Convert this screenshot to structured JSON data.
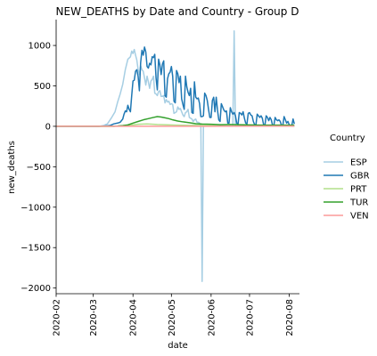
{
  "chart_data": {
    "type": "line",
    "title": "NEW_DEATHS by Date and Country - Group D",
    "xlabel": "date",
    "ylabel": "new_deaths",
    "xlim": [
      "2020-02-01",
      "2020-08-09"
    ],
    "ylim": [
      -2070,
      1320
    ],
    "x_ticks": [
      "2020-02",
      "2020-03",
      "2020-04",
      "2020-05",
      "2020-06",
      "2020-07",
      "2020-08"
    ],
    "y_ticks": [
      -2000,
      -1500,
      -1000,
      -500,
      0,
      500,
      1000
    ],
    "grid": false,
    "legend": {
      "title": "Country",
      "position": "right"
    },
    "series": [
      {
        "name": "ESP",
        "color": "#a6cee3",
        "points": [
          [
            "2020-02-01",
            0
          ],
          [
            "2020-03-01",
            0
          ],
          [
            "2020-03-06",
            1
          ],
          [
            "2020-03-09",
            10
          ],
          [
            "2020-03-12",
            30
          ],
          [
            "2020-03-15",
            100
          ],
          [
            "2020-03-18",
            180
          ],
          [
            "2020-03-20",
            300
          ],
          [
            "2020-03-22",
            400
          ],
          [
            "2020-03-24",
            520
          ],
          [
            "2020-03-26",
            700
          ],
          [
            "2020-03-28",
            830
          ],
          [
            "2020-03-30",
            860
          ],
          [
            "2020-03-31",
            930
          ],
          [
            "2020-04-01",
            900
          ],
          [
            "2020-04-02",
            950
          ],
          [
            "2020-04-03",
            880
          ],
          [
            "2020-04-04",
            820
          ],
          [
            "2020-04-05",
            700
          ],
          [
            "2020-04-06",
            640
          ],
          [
            "2020-04-07",
            750
          ],
          [
            "2020-04-08",
            700
          ],
          [
            "2020-04-09",
            680
          ],
          [
            "2020-04-10",
            600
          ],
          [
            "2020-04-11",
            510
          ],
          [
            "2020-04-12",
            620
          ],
          [
            "2020-04-13",
            550
          ],
          [
            "2020-04-14",
            470
          ],
          [
            "2020-04-15",
            560
          ],
          [
            "2020-04-16",
            580
          ],
          [
            "2020-04-17",
            620
          ],
          [
            "2020-04-18",
            410
          ],
          [
            "2020-04-19",
            400
          ],
          [
            "2020-04-20",
            380
          ],
          [
            "2020-04-21",
            430
          ],
          [
            "2020-04-22",
            440
          ],
          [
            "2020-04-23",
            370
          ],
          [
            "2020-04-24",
            370
          ],
          [
            "2020-04-25",
            380
          ],
          [
            "2020-04-26",
            290
          ],
          [
            "2020-04-27",
            330
          ],
          [
            "2020-04-28",
            300
          ],
          [
            "2020-04-29",
            310
          ],
          [
            "2020-04-30",
            270
          ],
          [
            "2020-05-01",
            280
          ],
          [
            "2020-05-02",
            270
          ],
          [
            "2020-05-03",
            160
          ],
          [
            "2020-05-04",
            170
          ],
          [
            "2020-05-05",
            180
          ],
          [
            "2020-05-06",
            240
          ],
          [
            "2020-05-07",
            210
          ],
          [
            "2020-05-08",
            220
          ],
          [
            "2020-05-09",
            180
          ],
          [
            "2020-05-10",
            140
          ],
          [
            "2020-05-11",
            120
          ],
          [
            "2020-05-12",
            170
          ],
          [
            "2020-05-13",
            180
          ],
          [
            "2020-05-14",
            210
          ],
          [
            "2020-05-15",
            110
          ],
          [
            "2020-05-16",
            100
          ],
          [
            "2020-05-17",
            90
          ],
          [
            "2020-05-18",
            60
          ],
          [
            "2020-05-19",
            80
          ],
          [
            "2020-05-20",
            90
          ],
          [
            "2020-05-21",
            50
          ],
          [
            "2020-05-22",
            50
          ],
          [
            "2020-05-23",
            40
          ],
          [
            "2020-05-24",
            10
          ],
          [
            "2020-05-25",
            -1918
          ],
          [
            "2020-05-26",
            0
          ],
          [
            "2020-05-27",
            2
          ],
          [
            "2020-06-05",
            2
          ],
          [
            "2020-06-10",
            3
          ],
          [
            "2020-06-18",
            1
          ],
          [
            "2020-06-19",
            1179
          ],
          [
            "2020-06-20",
            0
          ],
          [
            "2020-07-01",
            5
          ],
          [
            "2020-07-15",
            3
          ],
          [
            "2020-08-01",
            2
          ],
          [
            "2020-08-05",
            1
          ]
        ]
      },
      {
        "name": "GBR",
        "color": "#1f78b4",
        "points": [
          [
            "2020-02-01",
            0
          ],
          [
            "2020-03-05",
            1
          ],
          [
            "2020-03-10",
            3
          ],
          [
            "2020-03-14",
            10
          ],
          [
            "2020-03-17",
            30
          ],
          [
            "2020-03-20",
            40
          ],
          [
            "2020-03-22",
            50
          ],
          [
            "2020-03-24",
            90
          ],
          [
            "2020-03-25",
            150
          ],
          [
            "2020-03-26",
            190
          ],
          [
            "2020-03-27",
            180
          ],
          [
            "2020-03-28",
            260
          ],
          [
            "2020-03-29",
            210
          ],
          [
            "2020-03-30",
            180
          ],
          [
            "2020-03-31",
            380
          ],
          [
            "2020-04-01",
            560
          ],
          [
            "2020-04-02",
            570
          ],
          [
            "2020-04-03",
            680
          ],
          [
            "2020-04-04",
            700
          ],
          [
            "2020-04-05",
            620
          ],
          [
            "2020-04-06",
            440
          ],
          [
            "2020-04-07",
            790
          ],
          [
            "2020-04-08",
            940
          ],
          [
            "2020-04-09",
            880
          ],
          [
            "2020-04-10",
            980
          ],
          [
            "2020-04-11",
            920
          ],
          [
            "2020-04-12",
            740
          ],
          [
            "2020-04-13",
            720
          ],
          [
            "2020-04-14",
            780
          ],
          [
            "2020-04-15",
            760
          ],
          [
            "2020-04-16",
            860
          ],
          [
            "2020-04-17",
            850
          ],
          [
            "2020-04-18",
            890
          ],
          [
            "2020-04-19",
            600
          ],
          [
            "2020-04-20",
            450
          ],
          [
            "2020-04-21",
            830
          ],
          [
            "2020-04-22",
            760
          ],
          [
            "2020-04-23",
            640
          ],
          [
            "2020-04-24",
            770
          ],
          [
            "2020-04-25",
            810
          ],
          [
            "2020-04-26",
            380
          ],
          [
            "2020-04-27",
            360
          ],
          [
            "2020-04-28",
            590
          ],
          [
            "2020-04-29",
            650
          ],
          [
            "2020-04-30",
            670
          ],
          [
            "2020-05-01",
            740
          ],
          [
            "2020-05-02",
            620
          ],
          [
            "2020-05-03",
            310
          ],
          [
            "2020-05-04",
            290
          ],
          [
            "2020-05-05",
            690
          ],
          [
            "2020-05-06",
            650
          ],
          [
            "2020-05-07",
            540
          ],
          [
            "2020-05-08",
            620
          ],
          [
            "2020-05-09",
            340
          ],
          [
            "2020-05-10",
            270
          ],
          [
            "2020-05-11",
            210
          ],
          [
            "2020-05-12",
            620
          ],
          [
            "2020-05-13",
            490
          ],
          [
            "2020-05-14",
            420
          ],
          [
            "2020-05-15",
            380
          ],
          [
            "2020-05-16",
            470
          ],
          [
            "2020-05-17",
            170
          ],
          [
            "2020-05-18",
            160
          ],
          [
            "2020-05-19",
            550
          ],
          [
            "2020-05-20",
            360
          ],
          [
            "2020-05-21",
            340
          ],
          [
            "2020-05-22",
            350
          ],
          [
            "2020-05-23",
            280
          ],
          [
            "2020-05-24",
            120
          ],
          [
            "2020-05-25",
            120
          ],
          [
            "2020-05-26",
            130
          ],
          [
            "2020-05-27",
            410
          ],
          [
            "2020-05-28",
            380
          ],
          [
            "2020-05-29",
            320
          ],
          [
            "2020-05-30",
            210
          ],
          [
            "2020-05-31",
            110
          ],
          [
            "2020-06-01",
            110
          ],
          [
            "2020-06-02",
            320
          ],
          [
            "2020-06-03",
            360
          ],
          [
            "2020-06-04",
            180
          ],
          [
            "2020-06-05",
            360
          ],
          [
            "2020-06-06",
            200
          ],
          [
            "2020-06-07",
            80
          ],
          [
            "2020-06-08",
            60
          ],
          [
            "2020-06-09",
            280
          ],
          [
            "2020-06-10",
            240
          ],
          [
            "2020-06-11",
            200
          ],
          [
            "2020-06-12",
            180
          ],
          [
            "2020-06-13",
            190
          ],
          [
            "2020-06-14",
            40
          ],
          [
            "2020-06-15",
            40
          ],
          [
            "2020-06-16",
            230
          ],
          [
            "2020-06-17",
            180
          ],
          [
            "2020-06-18",
            150
          ],
          [
            "2020-06-19",
            170
          ],
          [
            "2020-06-20",
            130
          ],
          [
            "2020-06-21",
            40
          ],
          [
            "2020-06-22",
            20
          ],
          [
            "2020-06-23",
            170
          ],
          [
            "2020-06-24",
            160
          ],
          [
            "2020-06-25",
            140
          ],
          [
            "2020-06-26",
            180
          ],
          [
            "2020-06-27",
            100
          ],
          [
            "2020-06-28",
            40
          ],
          [
            "2020-06-29",
            30
          ],
          [
            "2020-06-30",
            160
          ],
          [
            "2020-07-01",
            170
          ],
          [
            "2020-07-02",
            140
          ],
          [
            "2020-07-03",
            130
          ],
          [
            "2020-07-04",
            60
          ],
          [
            "2020-07-05",
            20
          ],
          [
            "2020-07-06",
            20
          ],
          [
            "2020-07-07",
            150
          ],
          [
            "2020-07-08",
            130
          ],
          [
            "2020-07-09",
            110
          ],
          [
            "2020-07-10",
            130
          ],
          [
            "2020-07-11",
            100
          ],
          [
            "2020-07-12",
            20
          ],
          [
            "2020-07-13",
            10
          ],
          [
            "2020-07-14",
            130
          ],
          [
            "2020-07-15",
            110
          ],
          [
            "2020-07-16",
            70
          ],
          [
            "2020-07-17",
            110
          ],
          [
            "2020-07-18",
            80
          ],
          [
            "2020-07-19",
            10
          ],
          [
            "2020-07-20",
            10
          ],
          [
            "2020-07-21",
            110
          ],
          [
            "2020-07-22",
            80
          ],
          [
            "2020-07-23",
            70
          ],
          [
            "2020-07-24",
            80
          ],
          [
            "2020-07-25",
            60
          ],
          [
            "2020-07-26",
            10
          ],
          [
            "2020-07-27",
            10
          ],
          [
            "2020-07-28",
            120
          ],
          [
            "2020-07-29",
            80
          ],
          [
            "2020-07-30",
            40
          ],
          [
            "2020-07-31",
            60
          ],
          [
            "2020-08-01",
            20
          ],
          [
            "2020-08-02",
            10
          ],
          [
            "2020-08-03",
            10
          ],
          [
            "2020-08-04",
            90
          ],
          [
            "2020-08-05",
            30
          ]
        ]
      },
      {
        "name": "PRT",
        "color": "#b2df8a",
        "points": [
          [
            "2020-02-01",
            0
          ],
          [
            "2020-03-14",
            0
          ],
          [
            "2020-03-20",
            3
          ],
          [
            "2020-03-28",
            12
          ],
          [
            "2020-04-05",
            25
          ],
          [
            "2020-04-12",
            30
          ],
          [
            "2020-04-20",
            22
          ],
          [
            "2020-04-28",
            18
          ],
          [
            "2020-05-05",
            15
          ],
          [
            "2020-05-15",
            12
          ],
          [
            "2020-05-25",
            10
          ],
          [
            "2020-06-05",
            5
          ],
          [
            "2020-06-20",
            3
          ],
          [
            "2020-07-05",
            4
          ],
          [
            "2020-07-20",
            3
          ],
          [
            "2020-08-05",
            2
          ]
        ]
      },
      {
        "name": "TUR",
        "color": "#33a02c",
        "points": [
          [
            "2020-02-01",
            0
          ],
          [
            "2020-03-17",
            0
          ],
          [
            "2020-03-20",
            3
          ],
          [
            "2020-03-24",
            9
          ],
          [
            "2020-03-28",
            17
          ],
          [
            "2020-04-01",
            40
          ],
          [
            "2020-04-05",
            60
          ],
          [
            "2020-04-09",
            80
          ],
          [
            "2020-04-13",
            95
          ],
          [
            "2020-04-17",
            110
          ],
          [
            "2020-04-20",
            120
          ],
          [
            "2020-04-23",
            115
          ],
          [
            "2020-04-26",
            105
          ],
          [
            "2020-04-29",
            95
          ],
          [
            "2020-05-02",
            80
          ],
          [
            "2020-05-06",
            65
          ],
          [
            "2020-05-10",
            55
          ],
          [
            "2020-05-15",
            45
          ],
          [
            "2020-05-20",
            32
          ],
          [
            "2020-05-25",
            28
          ],
          [
            "2020-06-01",
            25
          ],
          [
            "2020-06-08",
            20
          ],
          [
            "2020-06-15",
            22
          ],
          [
            "2020-06-22",
            20
          ],
          [
            "2020-07-01",
            17
          ],
          [
            "2020-07-10",
            15
          ],
          [
            "2020-07-20",
            14
          ],
          [
            "2020-08-01",
            14
          ],
          [
            "2020-08-05",
            14
          ]
        ]
      },
      {
        "name": "VEN",
        "color": "#fb9a99",
        "points": [
          [
            "2020-02-01",
            0
          ],
          [
            "2020-06-01",
            1
          ],
          [
            "2020-07-01",
            2
          ],
          [
            "2020-08-05",
            3
          ]
        ]
      }
    ]
  }
}
